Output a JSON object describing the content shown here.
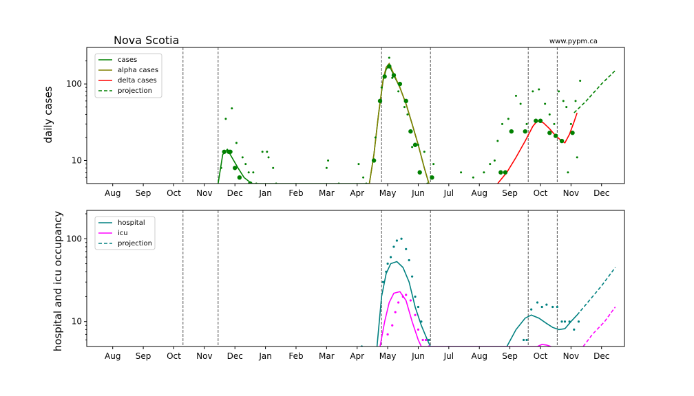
{
  "title": "Nova Scotia",
  "site": "www.pypm.ca",
  "colors": {
    "cases": "#008000",
    "alpha": "#808000",
    "delta": "#ff0000",
    "hospital": "#008080",
    "icu": "#ff00ff"
  },
  "chart_data": [
    {
      "type": "line",
      "ylabel": "daily cases",
      "yscale": "log",
      "ylim": [
        5,
        300
      ],
      "yticks": [
        10,
        100
      ],
      "xtick_labels": [
        "Aug",
        "Sep",
        "Oct",
        "Nov",
        "Dec",
        "Jan",
        "Feb",
        "Mar",
        "Apr",
        "May",
        "Jun",
        "Jul",
        "Aug",
        "Sep",
        "Oct",
        "Nov",
        "Dec"
      ],
      "x_unit": "month index (0 = Jul 2020)",
      "xlim": [
        0.15,
        17.75
      ],
      "vlines": [
        3.3,
        4.45,
        9.8,
        11.4,
        14.6,
        15.55
      ],
      "legend": [
        "cases",
        "alpha cases",
        "delta cases",
        "projection"
      ],
      "legend_position": "upper-left",
      "series": [
        {
          "name": "cases",
          "color": "#008000",
          "style": "solid",
          "points": [
            [
              4.45,
              5
            ],
            [
              4.6,
              12
            ],
            [
              4.75,
              14
            ],
            [
              4.9,
              11
            ],
            [
              5.1,
              8
            ],
            [
              5.3,
              6
            ],
            [
              5.55,
              5
            ],
            [
              9.4,
              5
            ],
            [
              9.55,
              12
            ],
            [
              9.7,
              40
            ],
            [
              9.85,
              110
            ],
            [
              9.95,
              155
            ],
            [
              10.05,
              175
            ],
            [
              10.2,
              130
            ],
            [
              10.4,
              90
            ],
            [
              10.6,
              55
            ],
            [
              10.8,
              30
            ],
            [
              11.0,
              16
            ],
            [
              11.2,
              8
            ],
            [
              11.35,
              5
            ]
          ]
        },
        {
          "name": "alpha cases",
          "color": "#808000",
          "style": "solid",
          "points": [
            [
              9.4,
              5
            ],
            [
              9.55,
              12
            ],
            [
              9.7,
              40
            ],
            [
              9.85,
              115
            ],
            [
              9.95,
              165
            ],
            [
              10.05,
              185
            ],
            [
              10.2,
              135
            ],
            [
              10.4,
              90
            ],
            [
              10.6,
              55
            ],
            [
              10.8,
              30
            ],
            [
              11.0,
              16
            ],
            [
              11.2,
              8
            ],
            [
              11.35,
              5
            ]
          ]
        },
        {
          "name": "delta cases",
          "color": "#ff0000",
          "style": "solid",
          "points": [
            [
              13.6,
              5
            ],
            [
              13.9,
              7
            ],
            [
              14.2,
              11
            ],
            [
              14.5,
              18
            ],
            [
              14.75,
              28
            ],
            [
              14.9,
              33
            ],
            [
              15.1,
              31
            ],
            [
              15.3,
              26
            ],
            [
              15.5,
              21
            ],
            [
              15.7,
              18
            ],
            [
              15.8,
              17
            ],
            [
              15.95,
              22
            ],
            [
              16.1,
              32
            ],
            [
              16.2,
              42
            ]
          ]
        },
        {
          "name": "projection",
          "color": "#008000",
          "style": "dashed",
          "points": [
            [
              16.1,
              42
            ],
            [
              16.5,
              60
            ],
            [
              17.0,
              100
            ],
            [
              17.45,
              150
            ]
          ]
        }
      ],
      "scatter_large": [
        [
          4.65,
          13
        ],
        [
          4.8,
          13
        ],
        [
          4.85,
          13
        ],
        [
          5.0,
          8
        ],
        [
          5.15,
          6
        ],
        [
          5.5,
          5
        ],
        [
          9.55,
          10
        ],
        [
          9.75,
          60
        ],
        [
          9.9,
          125
        ],
        [
          10.05,
          170
        ],
        [
          10.2,
          130
        ],
        [
          10.4,
          100
        ],
        [
          10.6,
          60
        ],
        [
          10.75,
          24
        ],
        [
          10.9,
          16
        ],
        [
          11.05,
          7
        ],
        [
          11.45,
          6
        ],
        [
          13.7,
          7
        ],
        [
          13.85,
          7
        ],
        [
          14.05,
          24
        ],
        [
          14.5,
          24
        ],
        [
          14.85,
          33
        ],
        [
          15.0,
          33
        ],
        [
          15.3,
          23
        ],
        [
          15.5,
          21
        ],
        [
          15.7,
          18
        ],
        [
          16.05,
          23
        ]
      ],
      "scatter_small": [
        [
          4.55,
          8
        ],
        [
          4.7,
          35
        ],
        [
          4.9,
          48
        ],
        [
          5.05,
          17
        ],
        [
          5.25,
          11
        ],
        [
          5.35,
          9
        ],
        [
          5.45,
          7
        ],
        [
          5.6,
          7
        ],
        [
          5.7,
          5
        ],
        [
          5.9,
          13
        ],
        [
          6.05,
          13
        ],
        [
          6.1,
          11
        ],
        [
          6.25,
          8
        ],
        [
          6.35,
          5
        ],
        [
          8.0,
          8
        ],
        [
          8.05,
          10
        ],
        [
          8.4,
          5
        ],
        [
          9.05,
          9
        ],
        [
          9.2,
          6
        ],
        [
          9.3,
          5
        ],
        [
          9.6,
          20
        ],
        [
          9.8,
          90
        ],
        [
          10.05,
          220
        ],
        [
          10.15,
          120
        ],
        [
          10.35,
          80
        ],
        [
          10.55,
          50
        ],
        [
          10.65,
          40
        ],
        [
          10.8,
          15
        ],
        [
          11.0,
          16
        ],
        [
          11.2,
          13
        ],
        [
          11.3,
          5
        ],
        [
          11.5,
          9
        ],
        [
          12.4,
          7
        ],
        [
          12.8,
          6
        ],
        [
          13.15,
          7
        ],
        [
          13.35,
          9
        ],
        [
          13.5,
          10
        ],
        [
          13.6,
          18
        ],
        [
          13.75,
          30
        ],
        [
          13.95,
          35
        ],
        [
          14.2,
          70
        ],
        [
          14.35,
          55
        ],
        [
          14.55,
          30
        ],
        [
          14.75,
          80
        ],
        [
          14.95,
          85
        ],
        [
          15.15,
          55
        ],
        [
          15.3,
          40
        ],
        [
          15.45,
          30
        ],
        [
          15.6,
          80
        ],
        [
          15.75,
          60
        ],
        [
          15.85,
          50
        ],
        [
          15.9,
          7
        ],
        [
          16.0,
          30
        ],
        [
          16.15,
          60
        ],
        [
          16.3,
          110
        ],
        [
          16.2,
          11
        ]
      ]
    },
    {
      "type": "line",
      "ylabel": "hospital and icu occupancy",
      "yscale": "log",
      "ylim": [
        5,
        220
      ],
      "yticks": [
        10,
        100
      ],
      "xtick_labels": [
        "Aug",
        "Sep",
        "Oct",
        "Nov",
        "Dec",
        "Jan",
        "Feb",
        "Mar",
        "Apr",
        "May",
        "Jun",
        "Jul",
        "Aug",
        "Sep",
        "Oct",
        "Nov",
        "Dec"
      ],
      "x_unit": "month index (0 = Jul 2020)",
      "xlim": [
        0.15,
        17.75
      ],
      "vlines": [
        3.3,
        4.45,
        9.8,
        11.4,
        14.6,
        15.55
      ],
      "legend": [
        "hospital",
        "icu",
        "projection"
      ],
      "legend_position": "upper-left",
      "series": [
        {
          "name": "hospital",
          "color": "#008080",
          "style": "solid",
          "points": [
            [
              9.65,
              5
            ],
            [
              9.8,
              20
            ],
            [
              9.95,
              38
            ],
            [
              10.1,
              50
            ],
            [
              10.3,
              53
            ],
            [
              10.5,
              45
            ],
            [
              10.7,
              30
            ],
            [
              10.9,
              15
            ],
            [
              11.1,
              9
            ],
            [
              11.3,
              6
            ],
            [
              11.4,
              5
            ],
            [
              13.9,
              5
            ],
            [
              14.2,
              8
            ],
            [
              14.5,
              11
            ],
            [
              14.7,
              12
            ],
            [
              14.95,
              11
            ],
            [
              15.2,
              9.5
            ],
            [
              15.4,
              8.5
            ],
            [
              15.6,
              8
            ],
            [
              15.8,
              8.2
            ],
            [
              16.0,
              10
            ],
            [
              16.2,
              12
            ]
          ]
        },
        {
          "name": "icu",
          "color": "#ff00ff",
          "style": "solid",
          "points": [
            [
              9.75,
              5
            ],
            [
              9.9,
              10
            ],
            [
              10.05,
              17
            ],
            [
              10.2,
              22
            ],
            [
              10.4,
              23
            ],
            [
              10.6,
              18
            ],
            [
              10.8,
              10
            ],
            [
              11.0,
              6
            ],
            [
              11.1,
              5
            ],
            [
              14.9,
              5
            ],
            [
              15.05,
              5.3
            ],
            [
              15.2,
              5.2
            ],
            [
              15.35,
              5
            ]
          ]
        },
        {
          "name": "projection",
          "color": "#008080",
          "style": "dashed",
          "points": [
            [
              16.2,
              12
            ],
            [
              16.6,
              18
            ],
            [
              17.0,
              27
            ],
            [
              17.45,
              45
            ]
          ]
        },
        {
          "name": "icu-projection",
          "color": "#ff00ff",
          "style": "dashed",
          "points": [
            [
              16.4,
              5
            ],
            [
              16.7,
              7
            ],
            [
              17.1,
              10
            ],
            [
              17.45,
              15
            ]
          ]
        }
      ],
      "scatter_hospital": [
        [
          9.85,
          30
        ],
        [
          9.95,
          40
        ],
        [
          10.0,
          50
        ],
        [
          10.1,
          60
        ],
        [
          10.2,
          80
        ],
        [
          10.3,
          95
        ],
        [
          10.45,
          100
        ],
        [
          10.6,
          75
        ],
        [
          10.7,
          55
        ],
        [
          10.8,
          35
        ],
        [
          10.9,
          20
        ],
        [
          11.0,
          15
        ],
        [
          11.1,
          10
        ],
        [
          11.25,
          6
        ],
        [
          11.35,
          6
        ],
        [
          9.15,
          5
        ],
        [
          14.45,
          6
        ],
        [
          14.55,
          6
        ],
        [
          14.7,
          14
        ],
        [
          14.9,
          17
        ],
        [
          15.05,
          15
        ],
        [
          15.2,
          16
        ],
        [
          15.4,
          15
        ],
        [
          15.55,
          15
        ],
        [
          15.7,
          10
        ],
        [
          15.8,
          10
        ],
        [
          15.95,
          10
        ],
        [
          16.1,
          8
        ],
        [
          16.25,
          10
        ]
      ],
      "scatter_icu": [
        [
          10.0,
          7
        ],
        [
          10.15,
          9
        ],
        [
          10.25,
          13
        ],
        [
          10.35,
          17
        ],
        [
          10.5,
          20
        ],
        [
          10.6,
          21
        ],
        [
          10.75,
          18
        ],
        [
          10.9,
          12
        ],
        [
          11.0,
          8
        ],
        [
          11.15,
          6
        ],
        [
          11.25,
          6
        ],
        [
          11.35,
          5
        ]
      ]
    }
  ],
  "legend1": {
    "cases": "cases",
    "alpha": "alpha cases",
    "delta": "delta cases",
    "projection": "projection"
  },
  "legend2": {
    "hospital": "hospital",
    "icu": "icu",
    "projection": "projection"
  }
}
